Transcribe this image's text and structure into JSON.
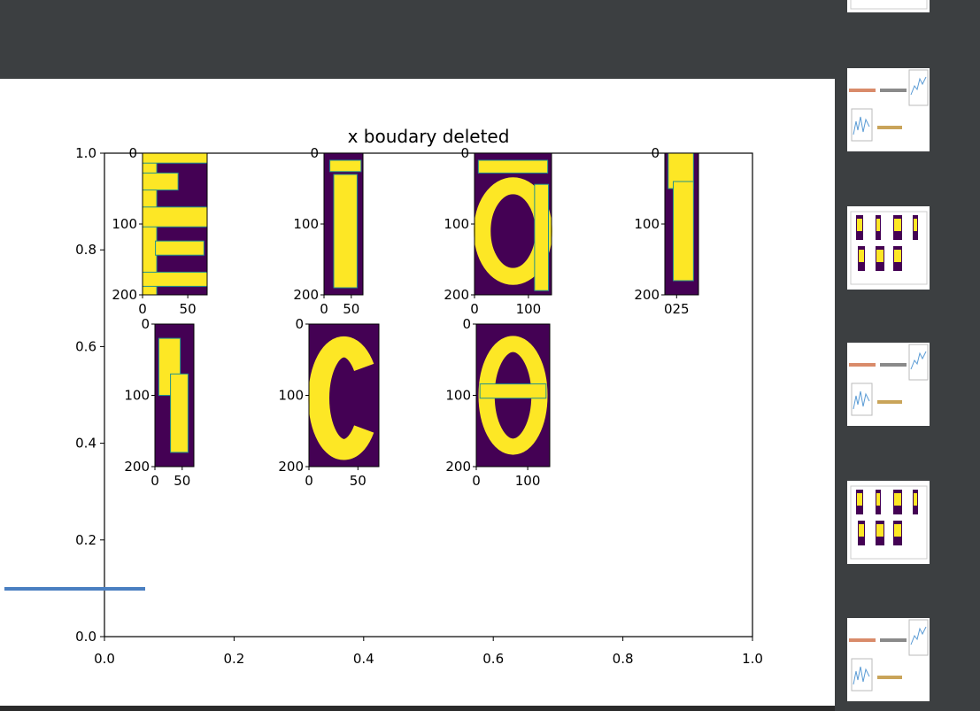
{
  "viewer": {
    "selected_index": 5,
    "accent_color": "#4a7fc1",
    "background_color": "#3c3f41"
  },
  "figure": {
    "title": "x boudary deleted",
    "outer_axes": {
      "x_ticks": [
        "0.0",
        "0.2",
        "0.4",
        "0.6",
        "0.8",
        "1.0"
      ],
      "y_ticks": [
        "0.0",
        "0.2",
        "0.4",
        "0.6",
        "0.8",
        "1.0"
      ],
      "xlim": [
        0.0,
        1.0
      ],
      "ylim": [
        0.0,
        1.0
      ]
    },
    "colormap": {
      "low": "#440154",
      "mid": "#21918c",
      "high": "#fde725"
    },
    "subplots": [
      {
        "id": "r1c1",
        "y_ticks": [
          "0",
          "100",
          "200"
        ],
        "x_ticks": [
          "0",
          "50"
        ],
        "glyph": "letter-E"
      },
      {
        "id": "r1c2",
        "y_ticks": [
          "0",
          "100",
          "200"
        ],
        "x_ticks": [
          "0",
          "50"
        ],
        "glyph": "letter-I"
      },
      {
        "id": "r1c3",
        "y_ticks": [
          "0",
          "100",
          "200"
        ],
        "x_ticks": [
          "0",
          "100"
        ],
        "glyph": "letter-a"
      },
      {
        "id": "r1c4",
        "y_ticks": [
          "0",
          "100",
          "200"
        ],
        "x_ticks": [
          "025"
        ],
        "glyph": "letter-l"
      },
      {
        "id": "r2c1",
        "y_ticks": [
          "0",
          "100",
          "200"
        ],
        "x_ticks": [
          "0",
          "50"
        ],
        "glyph": "letter-f"
      },
      {
        "id": "r2c2",
        "y_ticks": [
          "0",
          "100",
          "200"
        ],
        "x_ticks": [
          "0",
          "50"
        ],
        "glyph": "letter-c"
      },
      {
        "id": "r2c3",
        "y_ticks": [
          "0",
          "100",
          "200"
        ],
        "x_ticks": [
          "0",
          "100"
        ],
        "glyph": "letter-e"
      }
    ]
  },
  "thumbnails": [
    {
      "kind": "line-plot"
    },
    {
      "kind": "bars-and-lines"
    },
    {
      "kind": "image-grid"
    },
    {
      "kind": "bars-and-lines"
    },
    {
      "kind": "image-grid"
    },
    {
      "kind": "bars-and-lines"
    }
  ]
}
